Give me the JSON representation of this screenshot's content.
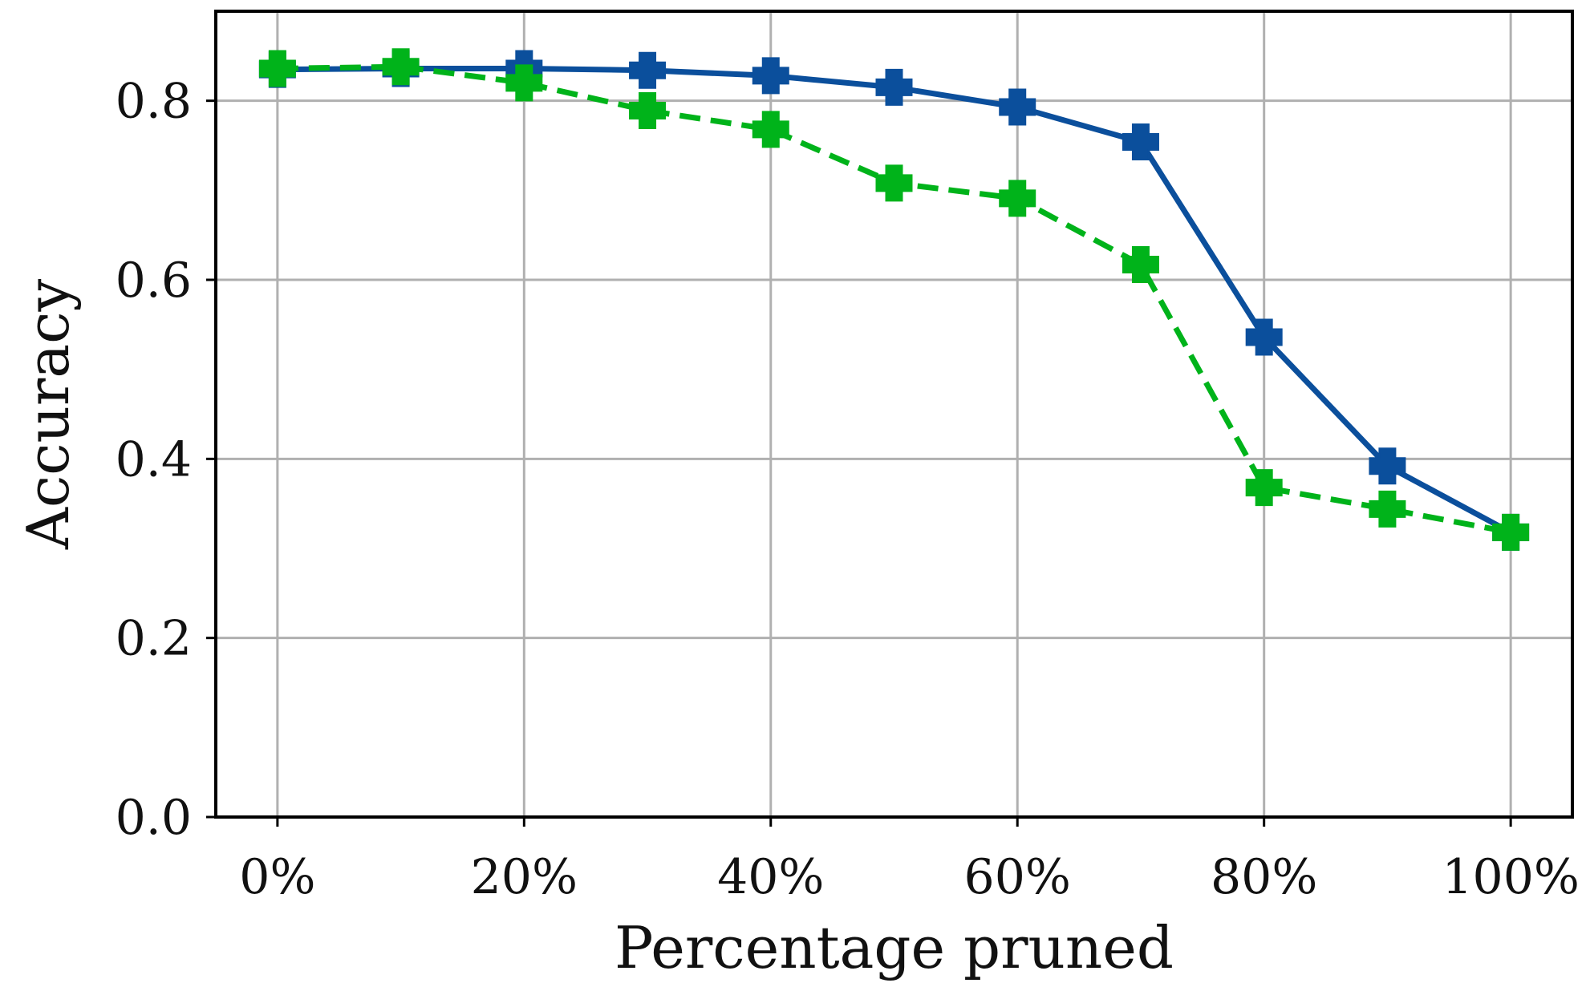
{
  "chart_data": {
    "type": "line",
    "title": "",
    "xlabel": "Percentage pruned",
    "ylabel": "Accuracy",
    "x": [
      0,
      10,
      20,
      30,
      40,
      50,
      60,
      70,
      80,
      90,
      100
    ],
    "xlim": [
      -5,
      105
    ],
    "ylim": [
      0,
      0.9
    ],
    "x_ticks": [
      0,
      20,
      40,
      60,
      80,
      100
    ],
    "x_tick_labels": [
      "0%",
      "20%",
      "40%",
      "60%",
      "80%",
      "100%"
    ],
    "y_ticks": [
      0.0,
      0.2,
      0.4,
      0.6,
      0.8
    ],
    "y_tick_labels": [
      "0.0",
      "0.2",
      "0.4",
      "0.6",
      "0.8"
    ],
    "grid": true,
    "series": [
      {
        "color": "#0b4f9c",
        "line_style": "solid",
        "marker": "plus-filled",
        "values": [
          0.835,
          0.836,
          0.836,
          0.834,
          0.828,
          0.815,
          0.793,
          0.754,
          0.536,
          0.392,
          0.318
        ]
      },
      {
        "color": "#00b31a",
        "line_style": "dashed",
        "marker": "plus-filled",
        "values": [
          0.836,
          0.838,
          0.82,
          0.789,
          0.768,
          0.708,
          0.691,
          0.617,
          0.368,
          0.344,
          0.318
        ]
      }
    ]
  }
}
